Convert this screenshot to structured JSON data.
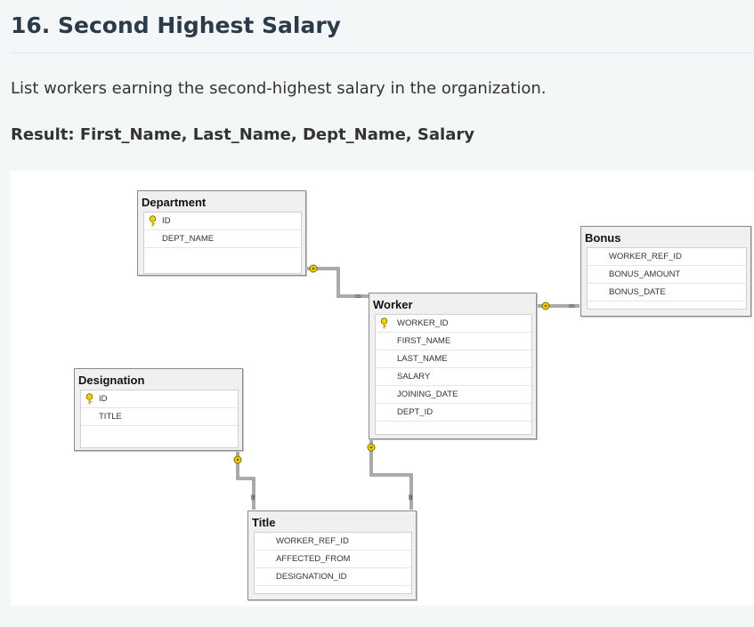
{
  "heading": "16. Second Highest Salary",
  "description": "List workers earning the second-highest salary in the organization.",
  "result": "Result: First_Name, Last_Name, Dept_Name, Salary",
  "diagram": {
    "tables": {
      "department": {
        "name": "Department",
        "columns": [
          "ID",
          "DEPT_NAME"
        ],
        "key_icon": "key-icon"
      },
      "bonus": {
        "name": "Bonus",
        "columns": [
          "WORKER_REF_ID",
          "BONUS_AMOUNT",
          "BONUS_DATE"
        ]
      },
      "worker": {
        "name": "Worker",
        "columns": [
          "WORKER_ID",
          "FIRST_NAME",
          "LAST_NAME",
          "SALARY",
          "JOINING_DATE",
          "DEPT_ID"
        ],
        "key_icon": "key-icon"
      },
      "designation": {
        "name": "Designation",
        "columns": [
          "ID",
          "TITLE"
        ],
        "key_icon": "key-icon"
      },
      "title": {
        "name": "Title",
        "columns": [
          "WORKER_REF_ID",
          "AFFECTED_FROM",
          "DESIGNATION_ID"
        ]
      }
    },
    "relationships": [
      {
        "from": "Department",
        "to": "Worker",
        "from_end": "key",
        "to_end": "infinity"
      },
      {
        "from": "Worker",
        "to": "Bonus",
        "from_end": "key",
        "to_end": "infinity"
      },
      {
        "from": "Designation",
        "to": "Title",
        "from_end": "key",
        "to_end": "infinity"
      },
      {
        "from": "Worker",
        "to": "Title",
        "from_end": "key",
        "to_end": "infinity"
      }
    ],
    "colors": {
      "key_gold": "#d6b400",
      "line": "#555555",
      "header_bg": "#f0f0f0"
    }
  }
}
